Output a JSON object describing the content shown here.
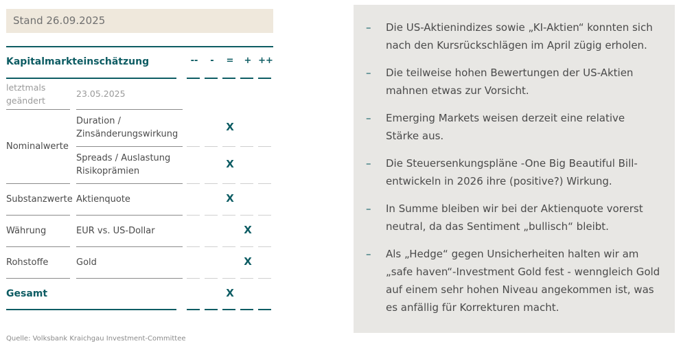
{
  "stand": "Stand 26.09.2025",
  "table": {
    "title": "Kapitalmarkteinschätzung",
    "scale": [
      "--",
      "-",
      "=",
      "+",
      "++"
    ],
    "changed_label": "letztmals geändert",
    "changed_date": "23.05.2025",
    "rows": [
      {
        "category": "Nominalwerte",
        "item": "Duration / Zinsänderungswirkung",
        "mark": "X"
      },
      {
        "category": "",
        "item": "Spreads / Auslastung Risikoprämien",
        "mark": "X"
      },
      {
        "category": "Substanzwerte",
        "item": "Aktienquote",
        "mark": "X"
      },
      {
        "category": "Währung",
        "item": "EUR vs. US-Dollar",
        "mark": "X"
      },
      {
        "category": "Rohstoffe",
        "item": "Gold",
        "mark": "X"
      }
    ],
    "total_label": "Gesamt",
    "total_mark": "X"
  },
  "source": "Quelle:  Volksbank Kraichgau Investment-Committee",
  "bullets": [
    "Die US-Aktienindizes sowie „KI-Aktien“ konnten sich nach den Kursrückschlägen im April zügig erholen.",
    "Die teilweise hohen Bewertungen der US-Aktien mahnen etwas zur Vorsicht.",
    "Emerging Markets weisen derzeit eine relative Stärke aus.",
    "Die Steuersenkungspläne -One Big Beautiful Bill- entwickeln in 2026 ihre (positive?) Wirkung.",
    "In Summe bleiben wir bei der Aktienquote vorerst neutral, da das Sentiment „bullisch“ bleibt.",
    "Als „Hedge“ gegen Unsicherheiten halten wir am „safe haven“-Investment Gold fest - wenngleich Gold auf einem sehr hohen Niveau angekommen ist, was es anfällig für Korrekturen macht."
  ],
  "bullet_dash": "–",
  "colors": {
    "accent": "#0d5c63",
    "stand_bg": "#efe8dc",
    "panel_bg": "#e8e7e4"
  }
}
